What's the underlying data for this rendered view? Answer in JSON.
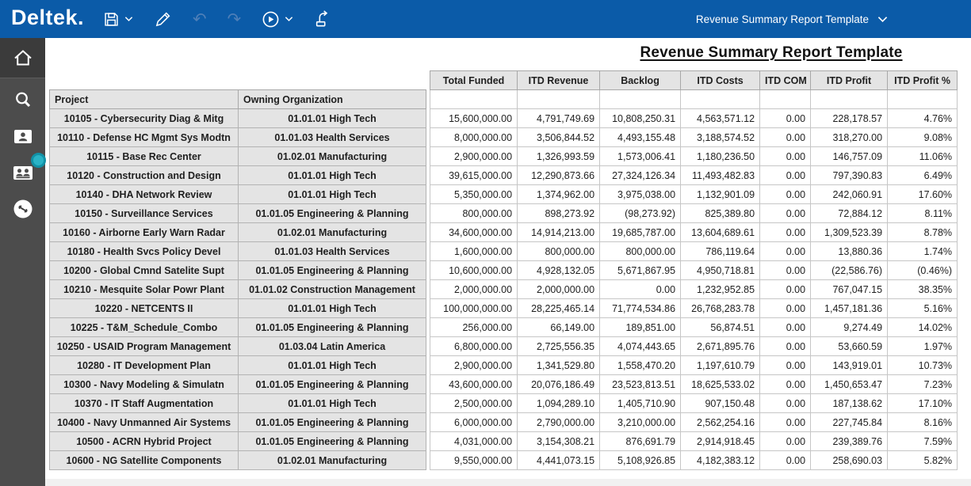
{
  "topbar": {
    "logo": "Deltek.",
    "template_selector": "Revenue Summary Report Template",
    "icons": [
      "save",
      "save-dropdown",
      "edit",
      "undo",
      "redo",
      "run",
      "run-dropdown",
      "export"
    ],
    "undo_glyph": "↶",
    "redo_glyph": "↷"
  },
  "sidebar": {
    "items": [
      "home",
      "search",
      "employee",
      "employees",
      "history"
    ]
  },
  "report": {
    "title": "Revenue Summary Report Template"
  },
  "table": {
    "left_headers": [
      "Project",
      "Owning Organization"
    ],
    "value_headers": [
      "Total Funded",
      "ITD Revenue",
      "Backlog",
      "ITD Costs",
      "ITD COM",
      "ITD Profit",
      "ITD Profit %"
    ],
    "rows": [
      {
        "project": "10105 - Cybersecurity Diag & Mitg",
        "org": "01.01.01   High Tech",
        "values": [
          "15,600,000.00",
          "4,791,749.69",
          "10,808,250.31",
          "4,563,571.12",
          "0.00",
          "228,178.57",
          "4.76%"
        ]
      },
      {
        "project": "10110 - Defense HC Mgmt Sys Modtn",
        "org": "01.01.03   Health Services",
        "values": [
          "8,000,000.00",
          "3,506,844.52",
          "4,493,155.48",
          "3,188,574.52",
          "0.00",
          "318,270.00",
          "9.08%"
        ]
      },
      {
        "project": "10115 - Base Rec Center",
        "org": "01.02.01   Manufacturing",
        "values": [
          "2,900,000.00",
          "1,326,993.59",
          "1,573,006.41",
          "1,180,236.50",
          "0.00",
          "146,757.09",
          "11.06%"
        ]
      },
      {
        "project": "10120 - Construction and Design",
        "org": "01.01.01   High Tech",
        "values": [
          "39,615,000.00",
          "12,290,873.66",
          "27,324,126.34",
          "11,493,482.83",
          "0.00",
          "797,390.83",
          "6.49%"
        ]
      },
      {
        "project": "10140 - DHA Network Review",
        "org": "01.01.01   High Tech",
        "values": [
          "5,350,000.00",
          "1,374,962.00",
          "3,975,038.00",
          "1,132,901.09",
          "0.00",
          "242,060.91",
          "17.60%"
        ]
      },
      {
        "project": "10150 - Surveillance Services",
        "org": "01.01.05   Engineering & Planning",
        "values": [
          "800,000.00",
          "898,273.92",
          "(98,273.92)",
          "825,389.80",
          "0.00",
          "72,884.12",
          "8.11%"
        ]
      },
      {
        "project": "10160 - Airborne Early Warn Radar",
        "org": "01.02.01   Manufacturing",
        "values": [
          "34,600,000.00",
          "14,914,213.00",
          "19,685,787.00",
          "13,604,689.61",
          "0.00",
          "1,309,523.39",
          "8.78%"
        ]
      },
      {
        "project": "10180 - Health Svcs Policy Devel",
        "org": "01.01.03   Health Services",
        "values": [
          "1,600,000.00",
          "800,000.00",
          "800,000.00",
          "786,119.64",
          "0.00",
          "13,880.36",
          "1.74%"
        ]
      },
      {
        "project": "10200 - Global Cmnd Satelite Supt",
        "org": "01.01.05   Engineering & Planning",
        "values": [
          "10,600,000.00",
          "4,928,132.05",
          "5,671,867.95",
          "4,950,718.81",
          "0.00",
          "(22,586.76)",
          "(0.46%)"
        ]
      },
      {
        "project": "10210 - Mesquite Solar Powr Plant",
        "org": "01.01.02   Construction Management",
        "values": [
          "2,000,000.00",
          "2,000,000.00",
          "0.00",
          "1,232,952.85",
          "0.00",
          "767,047.15",
          "38.35%"
        ]
      },
      {
        "project": "10220 - NETCENTS II",
        "org": "01.01.01   High Tech",
        "values": [
          "100,000,000.00",
          "28,225,465.14",
          "71,774,534.86",
          "26,768,283.78",
          "0.00",
          "1,457,181.36",
          "5.16%"
        ]
      },
      {
        "project": "10225 - T&M_Schedule_Combo",
        "org": "01.01.05   Engineering & Planning",
        "values": [
          "256,000.00",
          "66,149.00",
          "189,851.00",
          "56,874.51",
          "0.00",
          "9,274.49",
          "14.02%"
        ]
      },
      {
        "project": "10250 - USAID Program Management",
        "org": "01.03.04   Latin America",
        "values": [
          "6,800,000.00",
          "2,725,556.35",
          "4,074,443.65",
          "2,671,895.76",
          "0.00",
          "53,660.59",
          "1.97%"
        ]
      },
      {
        "project": "10280 - IT Development Plan",
        "org": "01.01.01   High Tech",
        "values": [
          "2,900,000.00",
          "1,341,529.80",
          "1,558,470.20",
          "1,197,610.79",
          "0.00",
          "143,919.01",
          "10.73%"
        ]
      },
      {
        "project": "10300 - Navy Modeling & Simulatn",
        "org": "01.01.05   Engineering & Planning",
        "values": [
          "43,600,000.00",
          "20,076,186.49",
          "23,523,813.51",
          "18,625,533.02",
          "0.00",
          "1,450,653.47",
          "7.23%"
        ]
      },
      {
        "project": "10370 - IT Staff Augmentation",
        "org": "01.01.01   High Tech",
        "values": [
          "2,500,000.00",
          "1,094,289.10",
          "1,405,710.90",
          "907,150.48",
          "0.00",
          "187,138.62",
          "17.10%"
        ]
      },
      {
        "project": "10400 - Navy Unmanned Air Systems",
        "org": "01.01.05   Engineering & Planning",
        "values": [
          "6,000,000.00",
          "2,790,000.00",
          "3,210,000.00",
          "2,562,254.16",
          "0.00",
          "227,745.84",
          "8.16%"
        ]
      },
      {
        "project": "10500 - ACRN Hybrid Project",
        "org": "01.01.05   Engineering & Planning",
        "values": [
          "4,031,000.00",
          "3,154,308.21",
          "876,691.79",
          "2,914,918.45",
          "0.00",
          "239,389.76",
          "7.59%"
        ]
      },
      {
        "project": "10600 - NG Satellite Components",
        "org": "01.02.01   Manufacturing",
        "values": [
          "9,550,000.00",
          "4,441,073.15",
          "5,108,926.85",
          "4,182,383.12",
          "0.00",
          "258,690.03",
          "5.82%"
        ]
      }
    ]
  },
  "colors": {
    "topbar_blue": "#0b5ba8",
    "sidebar_gray": "#4c4c4c",
    "accent_teal": "#2ab3c6",
    "header_gray": "#e4e4e4"
  }
}
